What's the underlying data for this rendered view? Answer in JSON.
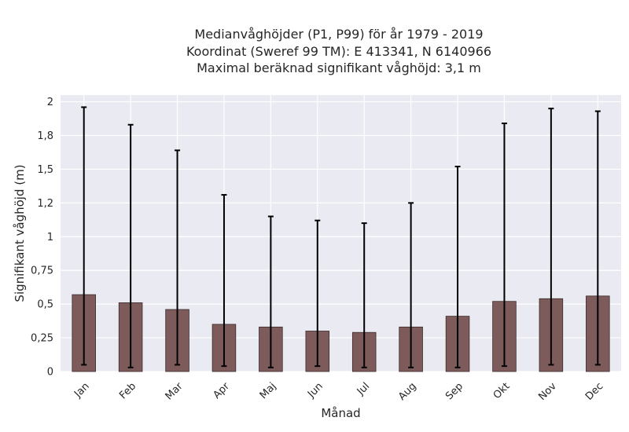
{
  "chart_data": {
    "type": "bar",
    "title_lines": [
      "Medianvåghöjder (P1, P99) för år 1979 - 2019",
      "Koordinat (Sweref 99 TM): E 413341, N 6140966",
      "Maximal beräknad signifikant våghöjd: 3,1 m"
    ],
    "xlabel": "Månad",
    "ylabel": "Signifikant våghöjd (m)",
    "categories": [
      "Jan",
      "Feb",
      "Mar",
      "Apr",
      "Maj",
      "Jun",
      "Jul",
      "Aug",
      "Sep",
      "Okt",
      "Nov",
      "Dec"
    ],
    "values": [
      0.57,
      0.51,
      0.46,
      0.35,
      0.33,
      0.3,
      0.29,
      0.33,
      0.41,
      0.52,
      0.54,
      0.56
    ],
    "error_low": [
      0.05,
      0.03,
      0.05,
      0.04,
      0.03,
      0.04,
      0.03,
      0.03,
      0.03,
      0.04,
      0.05,
      0.05
    ],
    "error_high": [
      1.96,
      1.83,
      1.64,
      1.31,
      1.15,
      1.12,
      1.1,
      1.25,
      1.52,
      1.84,
      1.95,
      1.93
    ],
    "ylim": [
      0,
      2.05
    ],
    "yticks": [
      0,
      0.25,
      0.5,
      0.75,
      1,
      1.25,
      1.5,
      1.75,
      2
    ],
    "ytick_labels": [
      "0",
      "0,25",
      "0,5",
      "0,75",
      "1",
      "1,2",
      "1,5",
      "1,8",
      "2"
    ],
    "grid": true,
    "colors": {
      "bar": "#7d5b5b",
      "bar_edge": "#3b2b2b",
      "error": "#000000",
      "plot_bg": "#eaeaf2",
      "grid": "#ffffff"
    }
  }
}
